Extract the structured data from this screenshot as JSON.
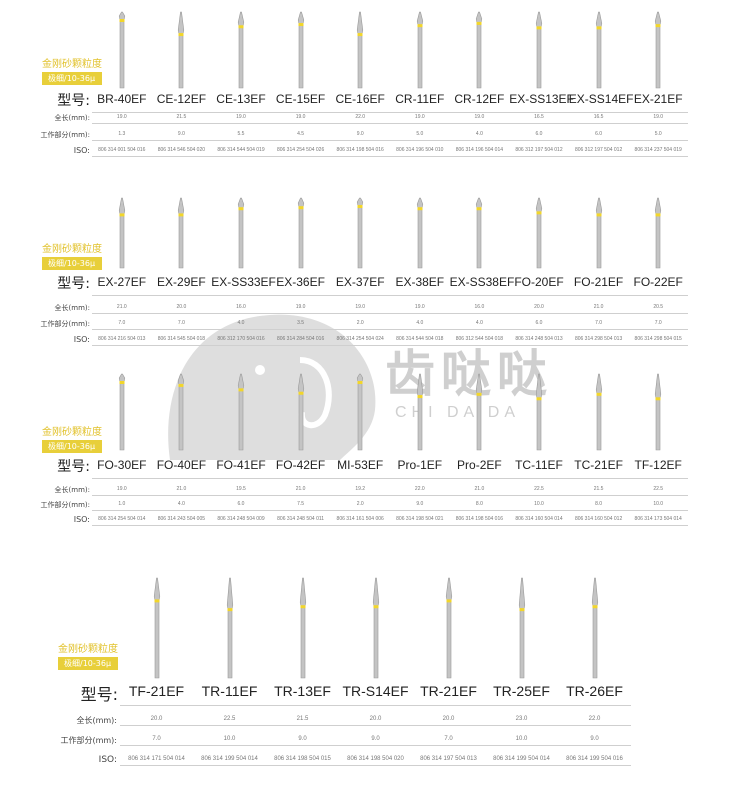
{
  "labels": {
    "model": "型号:",
    "length": "全长(mm):",
    "work": "工作部分(mm):",
    "iso": "ISO:"
  },
  "grit_tag": {
    "title": "金刚砂颗粒度",
    "value": "极细/10-36μ"
  },
  "watermark": {
    "text": "齿哒哒",
    "sub": "CHI DA DA"
  },
  "colors": {
    "grit_band": "#f2d62a",
    "tag": "#e8cf3a",
    "shank": "#b9b9b9"
  },
  "sections": [
    {
      "models": [
        "BR-40EF",
        "CE-12EF",
        "CE-13EF",
        "CE-15EF",
        "CE-16EF",
        "CR-11EF",
        "CR-12EF",
        "EX-SS13EF",
        "EX-SS14EF",
        "EX-21EF"
      ],
      "length": [
        "19.0",
        "21.5",
        "19.0",
        "19.0",
        "22.0",
        "19.0",
        "19.0",
        "16.5",
        "16.5",
        "19.0"
      ],
      "work": [
        "1.3",
        "9.0",
        "5.5",
        "4.5",
        "9.0",
        "5.0",
        "4.0",
        "6.0",
        "6.0",
        "5.0"
      ],
      "iso": [
        "806 314 001 504 016",
        "806 314 546 504 020",
        "806 314 544 504 019",
        "806 314 254 504 026",
        "806 314 198 504 016",
        "806 314 196 504 010",
        "806 314 196 504 014",
        "806 312 197 504 012",
        "806 312 197 504 012",
        "806 314 237 504 019"
      ]
    },
    {
      "models": [
        "EX-27EF",
        "EX-29EF",
        "EX-SS33EF",
        "EX-36EF",
        "EX-37EF",
        "EX-38EF",
        "EX-SS38EF",
        "FO-20EF",
        "FO-21EF",
        "FO-22EF"
      ],
      "length": [
        "21.0",
        "20.0",
        "16.0",
        "19.0",
        "19.0",
        "19.0",
        "16.0",
        "20.0",
        "21.0",
        "20.5"
      ],
      "work": [
        "7.0",
        "7.0",
        "4.0",
        "3.5",
        "2.0",
        "4.0",
        "4.0",
        "6.0",
        "7.0",
        "7.0"
      ],
      "iso": [
        "806 314 216 504 013",
        "806 314 545 504 018",
        "806 312 170 504 016",
        "806 314 284 504 016",
        "806 314 254 504 024",
        "806 314 544 504 018",
        "806 312 544 504 018",
        "806 314 248 504 013",
        "806 314 298 504 013",
        "806 314 298 504 015"
      ]
    },
    {
      "models": [
        "FO-30EF",
        "FO-40EF",
        "FO-41EF",
        "FO-42EF",
        "MI-53EF",
        "Pro-1EF",
        "Pro-2EF",
        "TC-11EF",
        "TC-21EF",
        "TF-12EF"
      ],
      "length": [
        "19.0",
        "21.0",
        "19.5",
        "21.0",
        "19.2",
        "22.0",
        "21.0",
        "22.5",
        "21.5",
        "22.5"
      ],
      "work": [
        "1.0",
        "4.0",
        "6.0",
        "7.5",
        "2.0",
        "9.0",
        "8.0",
        "10.0",
        "8.0",
        "10.0"
      ],
      "iso": [
        "806 314 254 504 014",
        "806 314 243 504 005",
        "806 314 248 504 009",
        "806 314 248 504 011",
        "806 314 161 504 006",
        "806 314 198 504 021",
        "806 314 198 504 016",
        "806 314 160 504 014",
        "806 314 160 504 012",
        "806 314 173 504 014"
      ]
    },
    {
      "models": [
        "TF-21EF",
        "TR-11EF",
        "TR-13EF",
        "TR-S14EF",
        "TR-21EF",
        "TR-25EF",
        "TR-26EF"
      ],
      "length": [
        "20.0",
        "22.5",
        "21.5",
        "20.0",
        "20.0",
        "23.0",
        "22.0"
      ],
      "work": [
        "7.0",
        "10.0",
        "9.0",
        "9.0",
        "7.0",
        "10.0",
        "9.0"
      ],
      "iso": [
        "806 314 171 504 014",
        "806 314 199 504 014",
        "806 314 198 504 015",
        "806 314 198 504 020",
        "806 314 197 504 013",
        "806 314 199 504 014",
        "806 314 199 504 016"
      ]
    }
  ]
}
